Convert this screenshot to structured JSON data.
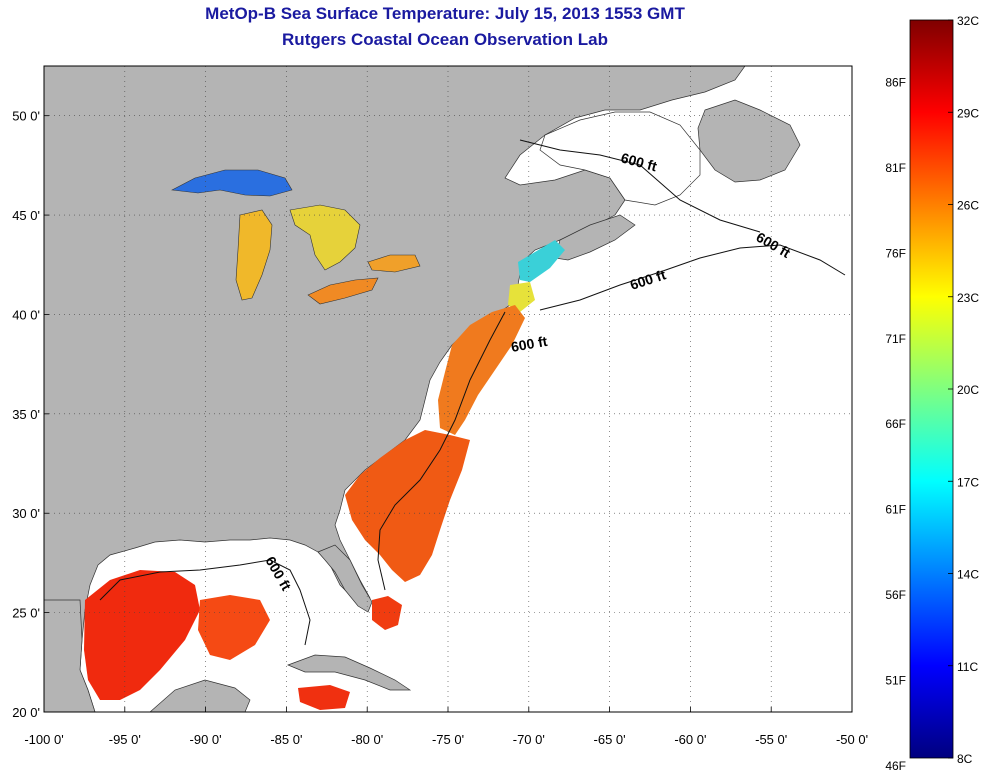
{
  "title": "MetOp-B Sea Surface Temperature:  July 15, 2013 1553 GMT",
  "subtitle": "Rutgers Coastal Ocean Observation Lab",
  "map": {
    "lon_range": [
      -100,
      -50
    ],
    "lat_range": [
      20,
      52.5
    ],
    "lon_ticks": [
      {
        "value": -100,
        "label": "-100 0'"
      },
      {
        "value": -95,
        "label": "-95 0'"
      },
      {
        "value": -90,
        "label": "-90 0'"
      },
      {
        "value": -85,
        "label": "-85 0'"
      },
      {
        "value": -80,
        "label": "-80 0'"
      },
      {
        "value": -75,
        "label": "-75 0'"
      },
      {
        "value": -70,
        "label": "-70 0'"
      },
      {
        "value": -65,
        "label": "-65 0'"
      },
      {
        "value": -60,
        "label": "-60 0'"
      },
      {
        "value": -55,
        "label": "-55 0'"
      },
      {
        "value": -50,
        "label": "-50 0'"
      }
    ],
    "lat_ticks": [
      {
        "value": 20,
        "label": "20 0'"
      },
      {
        "value": 25,
        "label": "25 0'"
      },
      {
        "value": 30,
        "label": "30 0'"
      },
      {
        "value": 35,
        "label": "35 0'"
      },
      {
        "value": 40,
        "label": "40 0'"
      },
      {
        "value": 45,
        "label": "45 0'"
      },
      {
        "value": 50,
        "label": "50 0'"
      }
    ],
    "contour_label": "600 ft",
    "land_color": "#b4b4b4",
    "ocean_color": "#ffffff",
    "grid": "dotted"
  },
  "colorbar": {
    "min_c": 8,
    "max_c": 32,
    "celsius_labels": [
      "32C",
      "29C",
      "26C",
      "23C",
      "20C",
      "17C",
      "14C",
      "11C",
      "8C"
    ],
    "fahrenheit_labels": [
      "86F",
      "81F",
      "76F",
      "71F",
      "66F",
      "61F",
      "56F",
      "51F",
      "46F"
    ],
    "colormap": "jet"
  }
}
